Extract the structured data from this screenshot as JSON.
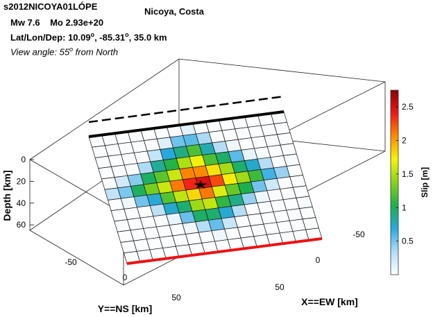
{
  "header": {
    "event_id": "s2012NICOYA01LÓPE",
    "location": "Nicoya, Costa",
    "magnitude": "Mw 7.6",
    "moment": "Mo 2.93e+20",
    "hypocenter_label": "Lat/Lon/Dep: 10.09",
    "lon_part": ", -85.31",
    "dep_part": ", 35.0 km",
    "degree_mark": "o",
    "view_label": "View angle:  55",
    "view_suffix": " from North"
  },
  "chart_data": {
    "type": "heatmap",
    "title": "",
    "xlabel": "X==EW [km]",
    "ylabel": "Y==NS [km]",
    "zlabel": "Depth [km]",
    "x_ticks": [
      -50,
      0,
      50
    ],
    "y_ticks": [
      -50,
      0,
      50
    ],
    "z_ticks": [
      0,
      20,
      40,
      60
    ],
    "zlim": [
      0,
      65
    ],
    "view_azimuth_deg": 55,
    "grid": true,
    "colorbar": {
      "label": "Slip [m]",
      "range": [
        0,
        2.75
      ],
      "ticks": [
        0.5,
        1,
        1.5,
        2,
        2.5
      ],
      "colormap": [
        "#ffffff",
        "#b3dcf5",
        "#29a8e0",
        "#1cb04a",
        "#86d21a",
        "#f4f40a",
        "#ff8c00",
        "#f01818",
        "#8c0000"
      ]
    },
    "fault_grid": {
      "strike_cells": 15,
      "dip_cells": 12
    },
    "peak_slip": 2.7,
    "hypocenter": {
      "lat": 10.09,
      "lon": -85.31,
      "depth_km": 35.0
    }
  }
}
